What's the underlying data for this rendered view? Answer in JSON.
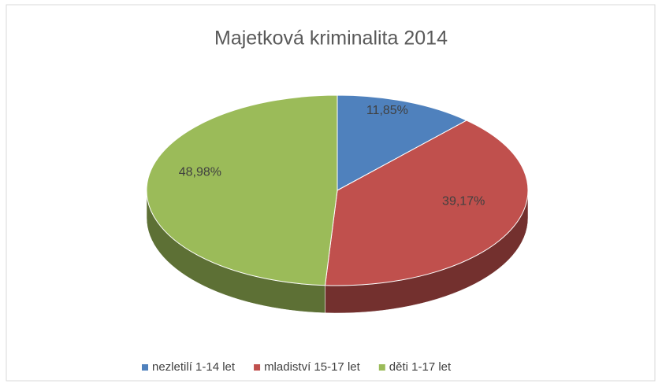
{
  "chart_data": {
    "type": "pie",
    "title": "Majetková kriminalita 2014",
    "categories": [
      "nezletilí 1-14 let",
      "mladiství 15-17 let",
      "děti 1-17 let"
    ],
    "values": [
      11.85,
      39.17,
      48.98
    ],
    "value_labels": [
      "11,85%",
      "39,17%",
      "48,98%"
    ],
    "colors": [
      "#4f81bd",
      "#c0504d",
      "#9bbb59"
    ],
    "legend": "bottom"
  }
}
